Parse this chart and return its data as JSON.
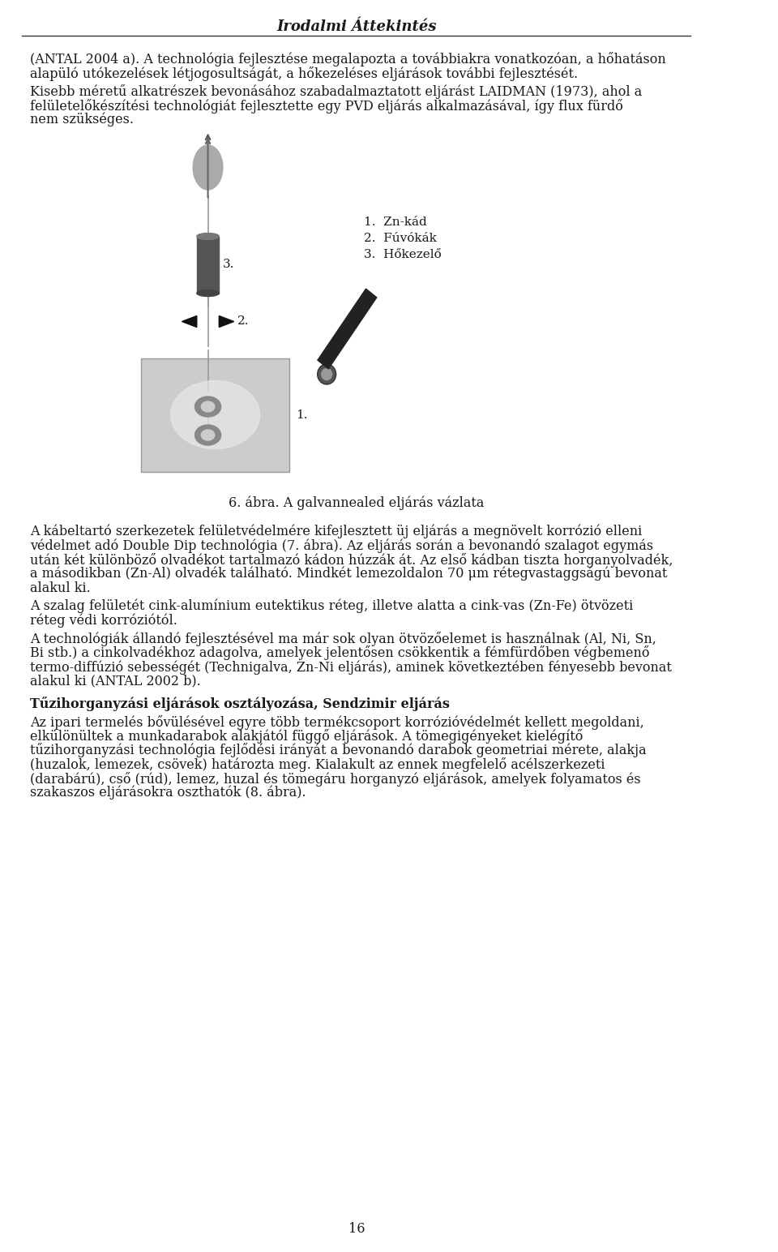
{
  "title": "Irodalmi Áttekintés",
  "page_number": "16",
  "background_color": "#ffffff",
  "text_color": "#1a1a1a",
  "para1": "(ANTAL 2004 a). A technológia fejlesztése megalapozta a továbbiakra vonatkozóan, a hőhatáson alapüló utókezelések létjogosultságát, a hőkezeléses eljárások további fejlesztését.",
  "para2": "Kisebb méretű alkatrészek bevonásához szabadalmaztatott eljárást LAIDMAN (1973), ahol a felületelőkészítési technológiát fejlesztette egy PVD eljárás alkalmazásával, így flux fürdő nem szükséges.",
  "legend1": "1.  Zn-kád",
  "legend2": "2.  Fúvókák",
  "legend3": "3.  Hőkezelő",
  "fig_label": "6. ábra. A galvannealed eljárás vázlata",
  "para3": "A kábeltartó szerkezetek felületvédelmére kifejlesztett üj eljárás a megnövelt korrózió elleni védelmet adó Double Dip technológia (7. ábra). Az eljárás során a bevonandó szalagot egymás után két különböző olvadékot tartalmazó kádon húzzák át. Az első kádban tiszta horganyolvadék, a másodikban (Zn-Al) olvadék található. Mindkét lemezoldalon 70 μm rétegvastaggságú bevonat alakul ki.",
  "para4": "A szalag felületét cink-alumínium eutektikus réteg, illetve alatta a cink-vas (Zn-Fe) ötvözeti réteg védi korróziótól.",
  "para5": "A technológiák állandó fejlesztésével ma már sok olyan ötvözőelemet is használnak (Al, Ni, Sn, Bi stb.) a cinkolvadékhoz adagolva, amelyek jelentősen csökkentik a fémfürdőben végbemenő termo-diffúzió sebességét (Technigalva, Zn-Ni eljárás), aminek következtében fényesebb bevonat alakul ki (ANTAL 2002 b).",
  "heading": "Tűzihorganyzási eljárások osztályozása, Sendzimir eljárás",
  "para6": "Az ipari termelés bővülésével egyre több termékcsoport korrózióvédelmét kellett megoldani, elkülönültek a munkadarabok alakjától függő eljárások. A tömegigényeket kielégítő tűzihorganyzási technológia fejlődési irányát a bevonandó darabok geometriai mérete, alakja (huzalok, lemezek, csövek) határozta meg. Kialakult az ennek megfelelő acélszerkezeti (darabárú), cső (rúd), lemez, huzal és tömegáru horganyzó eljárások, amelyek folyamatos és szakaszos eljárásokra oszthatók (8. ábra)."
}
